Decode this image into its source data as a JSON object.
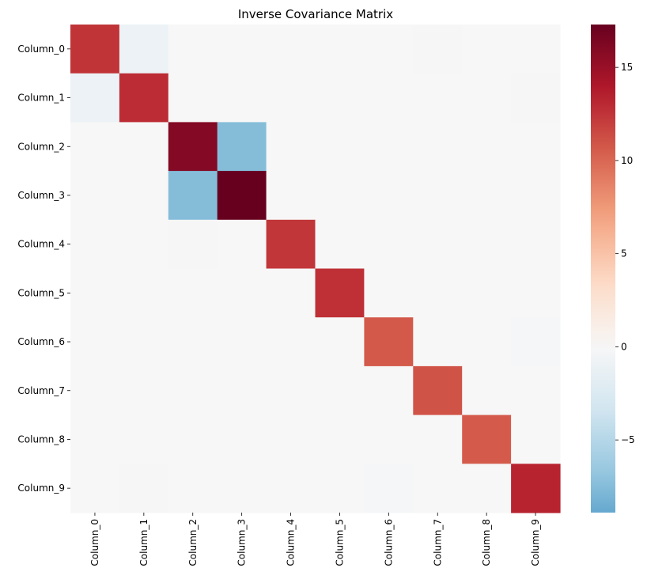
{
  "chart_data": {
    "type": "heatmap",
    "title": "Inverse Covariance Matrix",
    "rows": [
      "Column_0",
      "Column_1",
      "Column_2",
      "Column_3",
      "Column_4",
      "Column_5",
      "Column_6",
      "Column_7",
      "Column_8",
      "Column_9"
    ],
    "columns": [
      "Column_0",
      "Column_1",
      "Column_2",
      "Column_3",
      "Column_4",
      "Column_5",
      "Column_6",
      "Column_7",
      "Column_8",
      "Column_9"
    ],
    "values": [
      [
        12.5,
        -1.0,
        0.0,
        0.0,
        0.0,
        0.0,
        0.0,
        0.1,
        0.0,
        0.0
      ],
      [
        -1.0,
        12.9,
        0.0,
        0.0,
        0.0,
        0.0,
        0.0,
        0.0,
        0.0,
        -0.1
      ],
      [
        0.0,
        0.0,
        16.0,
        -7.5,
        0.0,
        0.0,
        0.0,
        0.0,
        0.0,
        0.0
      ],
      [
        0.0,
        0.0,
        -7.5,
        17.3,
        0.0,
        0.0,
        0.0,
        0.0,
        0.0,
        0.0
      ],
      [
        0.0,
        0.0,
        -0.1,
        0.0,
        12.4,
        0.0,
        0.0,
        0.0,
        0.0,
        0.0
      ],
      [
        0.0,
        0.0,
        0.0,
        0.0,
        0.0,
        12.7,
        0.0,
        0.0,
        0.0,
        0.0
      ],
      [
        0.0,
        0.0,
        0.0,
        0.0,
        0.0,
        0.0,
        10.7,
        0.0,
        0.0,
        -0.2
      ],
      [
        0.0,
        0.0,
        0.0,
        0.0,
        0.0,
        0.0,
        0.0,
        11.0,
        0.0,
        0.0
      ],
      [
        0.0,
        0.0,
        0.0,
        0.0,
        0.0,
        0.0,
        0.0,
        0.0,
        10.6,
        0.0
      ],
      [
        0.0,
        -0.1,
        0.0,
        0.0,
        0.0,
        0.0,
        -0.2,
        0.0,
        0.0,
        13.3
      ]
    ],
    "vmin": -8.9,
    "vmax": 17.3,
    "center": 0,
    "colormap": "RdBu_r",
    "colorbar_ticks": [
      -5,
      0,
      5,
      10,
      15
    ]
  }
}
